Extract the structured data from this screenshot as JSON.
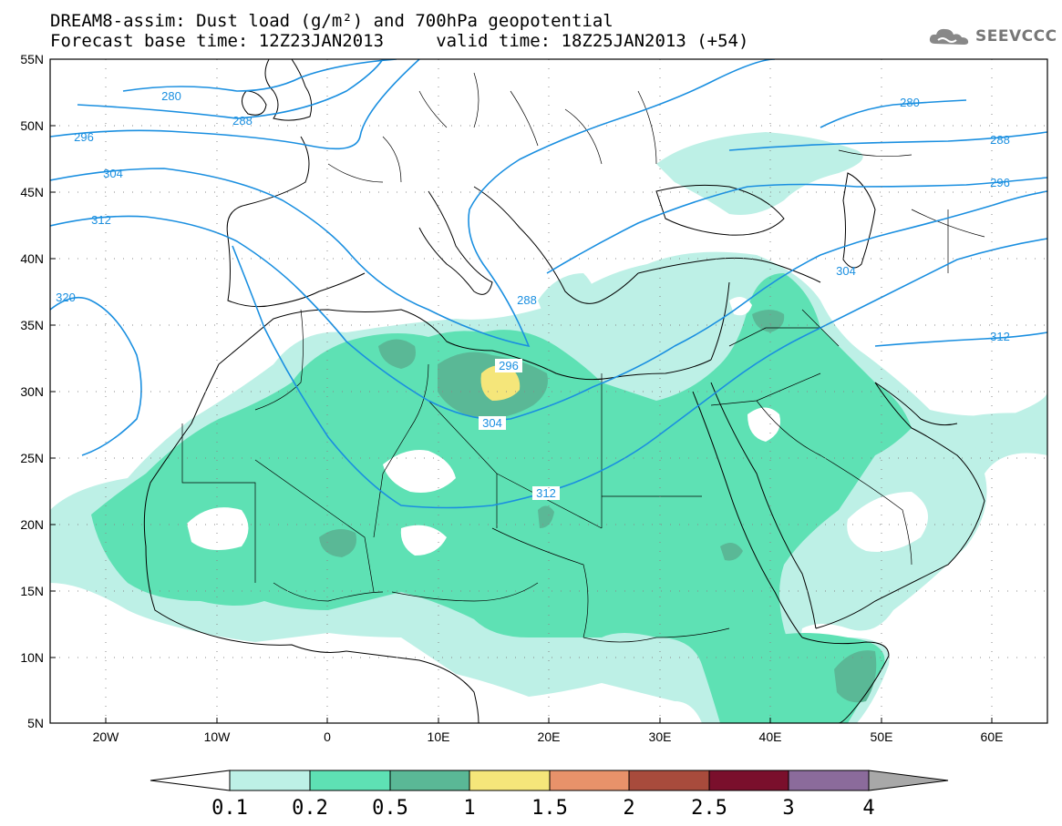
{
  "header": {
    "line1": "DREAM8-assim: Dust load (g/m²) and 700hPa geopotential",
    "line2": "Forecast base time: 12Z23JAN2013     valid time: 18Z25JAN2013 (+54)"
  },
  "logo": {
    "text": "SEEVCCC",
    "icon": "cloud-icon"
  },
  "map": {
    "lon_range": [
      -25,
      65
    ],
    "lat_range": [
      5,
      55
    ],
    "lon_ticks": [
      "20W",
      "10W",
      "0",
      "10E",
      "20E",
      "30E",
      "40E",
      "50E",
      "60E"
    ],
    "lat_ticks": [
      "55N",
      "50N",
      "45N",
      "40N",
      "35N",
      "30N",
      "25N",
      "20N",
      "15N",
      "10N",
      "5N"
    ],
    "geopotential_labels": [
      "280",
      "288",
      "296",
      "304",
      "312",
      "320",
      "280",
      "288",
      "296",
      "304",
      "312",
      "288",
      "296",
      "304",
      "312"
    ],
    "contour_color": "#1a8fe0"
  },
  "colorbar": {
    "labels": [
      "0.1",
      "0.2",
      "0.5",
      "1",
      "1.5",
      "2",
      "2.5",
      "3",
      "4"
    ],
    "colors": [
      "#bdf0e6",
      "#5ee1b4",
      "#5ab896",
      "#f5e67a",
      "#e8926a",
      "#a84b3c",
      "#7a0f2c",
      "#8b6b9b"
    ],
    "under_color": "#ffffff",
    "over_color": "#a8a8a8"
  }
}
